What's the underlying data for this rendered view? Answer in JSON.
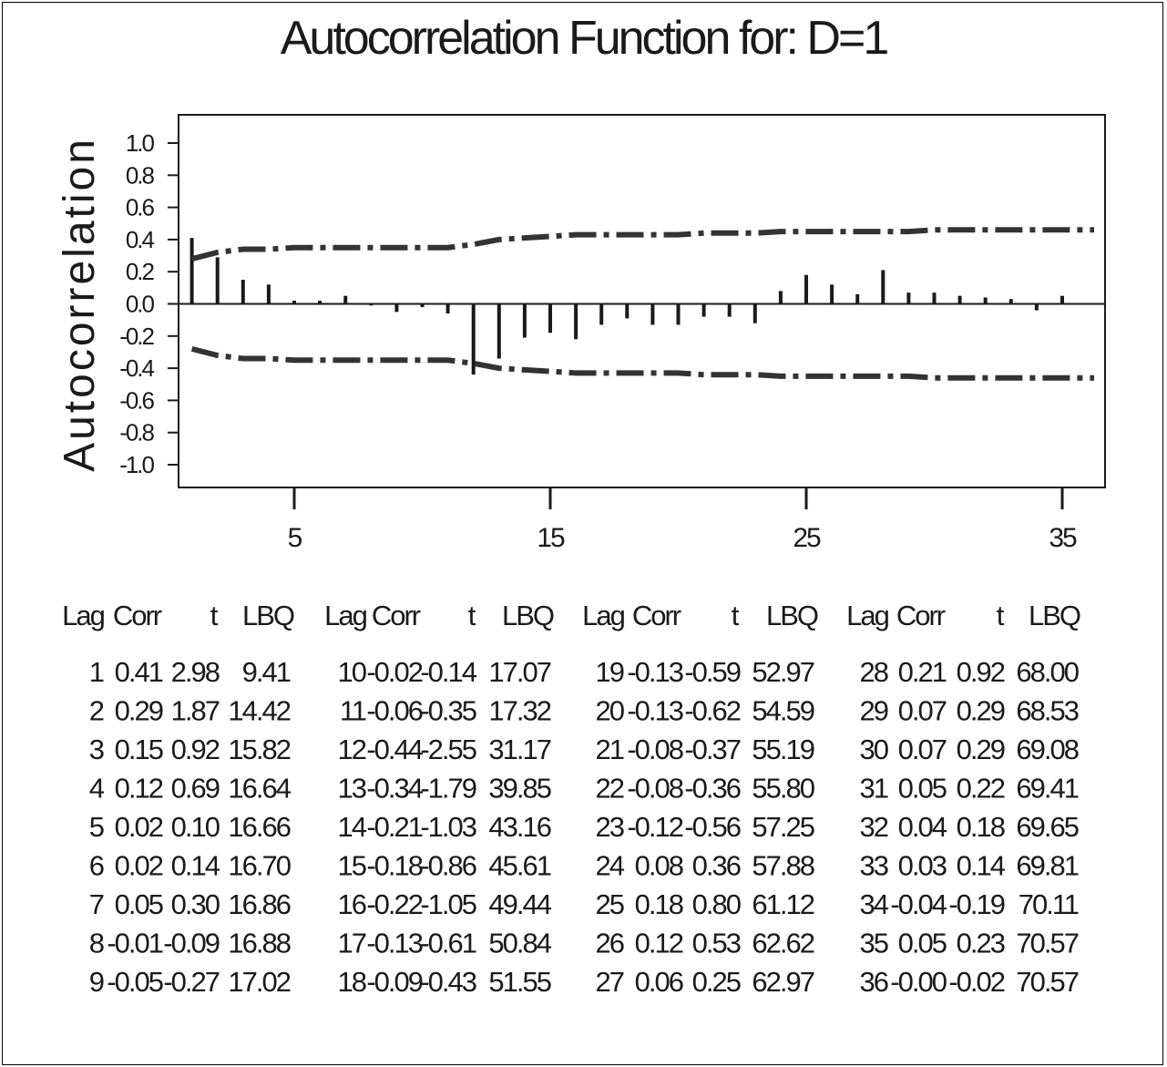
{
  "chart_data": {
    "type": "bar",
    "title": "Autocorrelation Function for: D=1",
    "ylabel": "Autocorrelation",
    "xlabel": "",
    "ylim": [
      -1.0,
      1.0
    ],
    "xlim": [
      0.5,
      36.5
    ],
    "y_ticks": [
      "1.0",
      "0.8",
      "0.6",
      "0.4",
      "0.2",
      "0.0",
      "-0.2",
      "-0.4",
      "-0.6",
      "-0.8",
      "-1.0"
    ],
    "x_ticks": [
      "5",
      "15",
      "25",
      "35"
    ],
    "series": [
      {
        "name": "Corr",
        "x": [
          1,
          2,
          3,
          4,
          5,
          6,
          7,
          8,
          9,
          10,
          11,
          12,
          13,
          14,
          15,
          16,
          17,
          18,
          19,
          20,
          21,
          22,
          23,
          24,
          25,
          26,
          27,
          28,
          29,
          30,
          31,
          32,
          33,
          34,
          35,
          36
        ],
        "values": [
          0.41,
          0.29,
          0.15,
          0.12,
          0.02,
          0.02,
          0.05,
          -0.01,
          -0.05,
          -0.02,
          -0.06,
          -0.44,
          -0.34,
          -0.21,
          -0.18,
          -0.22,
          -0.13,
          -0.09,
          -0.13,
          -0.13,
          -0.08,
          -0.08,
          -0.12,
          0.08,
          0.18,
          0.12,
          0.06,
          0.21,
          0.07,
          0.07,
          0.05,
          0.04,
          0.03,
          -0.04,
          0.05,
          -0.0
        ]
      }
    ],
    "confidence_upper": [
      0.28,
      0.32,
      0.34,
      0.34,
      0.35,
      0.35,
      0.35,
      0.35,
      0.35,
      0.35,
      0.35,
      0.37,
      0.4,
      0.41,
      0.42,
      0.43,
      0.43,
      0.43,
      0.43,
      0.43,
      0.44,
      0.44,
      0.44,
      0.45,
      0.45,
      0.45,
      0.45,
      0.45,
      0.45,
      0.46,
      0.46,
      0.46,
      0.46,
      0.46,
      0.46,
      0.46
    ],
    "confidence_lower": [
      -0.28,
      -0.32,
      -0.34,
      -0.34,
      -0.35,
      -0.35,
      -0.35,
      -0.35,
      -0.35,
      -0.35,
      -0.35,
      -0.37,
      -0.4,
      -0.41,
      -0.42,
      -0.43,
      -0.43,
      -0.43,
      -0.43,
      -0.43,
      -0.44,
      -0.44,
      -0.44,
      -0.45,
      -0.45,
      -0.45,
      -0.45,
      -0.45,
      -0.45,
      -0.46,
      -0.46,
      -0.46,
      -0.46,
      -0.46,
      -0.46,
      -0.46
    ]
  },
  "table": {
    "headers": [
      "Lag",
      "Corr",
      "t",
      "LBQ"
    ],
    "rows": [
      [
        "1",
        "0.41",
        "2.98",
        "9.41"
      ],
      [
        "2",
        "0.29",
        "1.87",
        "14.42"
      ],
      [
        "3",
        "0.15",
        "0.92",
        "15.82"
      ],
      [
        "4",
        "0.12",
        "0.69",
        "16.64"
      ],
      [
        "5",
        "0.02",
        "0.10",
        "16.66"
      ],
      [
        "6",
        "0.02",
        "0.14",
        "16.70"
      ],
      [
        "7",
        "0.05",
        "0.30",
        "16.86"
      ],
      [
        "8",
        "-0.01",
        "-0.09",
        "16.88"
      ],
      [
        "9",
        "-0.05",
        "-0.27",
        "17.02"
      ],
      [
        "10",
        "-0.02",
        "-0.14",
        "17.07"
      ],
      [
        "11",
        "-0.06",
        "-0.35",
        "17.32"
      ],
      [
        "12",
        "-0.44",
        "-2.55",
        "31.17"
      ],
      [
        "13",
        "-0.34",
        "-1.79",
        "39.85"
      ],
      [
        "14",
        "-0.21",
        "-1.03",
        "43.16"
      ],
      [
        "15",
        "-0.18",
        "-0.86",
        "45.61"
      ],
      [
        "16",
        "-0.22",
        "-1.05",
        "49.44"
      ],
      [
        "17",
        "-0.13",
        "-0.61",
        "50.84"
      ],
      [
        "18",
        "-0.09",
        "-0.43",
        "51.55"
      ],
      [
        "19",
        "-0.13",
        "-0.59",
        "52.97"
      ],
      [
        "20",
        "-0.13",
        "-0.62",
        "54.59"
      ],
      [
        "21",
        "-0.08",
        "-0.37",
        "55.19"
      ],
      [
        "22",
        "-0.08",
        "-0.36",
        "55.80"
      ],
      [
        "23",
        "-0.12",
        "-0.56",
        "57.25"
      ],
      [
        "24",
        "0.08",
        "0.36",
        "57.88"
      ],
      [
        "25",
        "0.18",
        "0.80",
        "61.12"
      ],
      [
        "26",
        "0.12",
        "0.53",
        "62.62"
      ],
      [
        "27",
        "0.06",
        "0.25",
        "62.97"
      ],
      [
        "28",
        "0.21",
        "0.92",
        "68.00"
      ],
      [
        "29",
        "0.07",
        "0.29",
        "68.53"
      ],
      [
        "30",
        "0.07",
        "0.29",
        "69.08"
      ],
      [
        "31",
        "0.05",
        "0.22",
        "69.41"
      ],
      [
        "32",
        "0.04",
        "0.18",
        "69.65"
      ],
      [
        "33",
        "0.03",
        "0.14",
        "69.81"
      ],
      [
        "34",
        "-0.04",
        "-0.19",
        "70.11"
      ],
      [
        "35",
        "0.05",
        "0.23",
        "70.57"
      ],
      [
        "36",
        "-0.00",
        "-0.02",
        "70.57"
      ]
    ]
  },
  "colors": {
    "ink": "#1a1a1a",
    "limit_line": "#333333"
  }
}
